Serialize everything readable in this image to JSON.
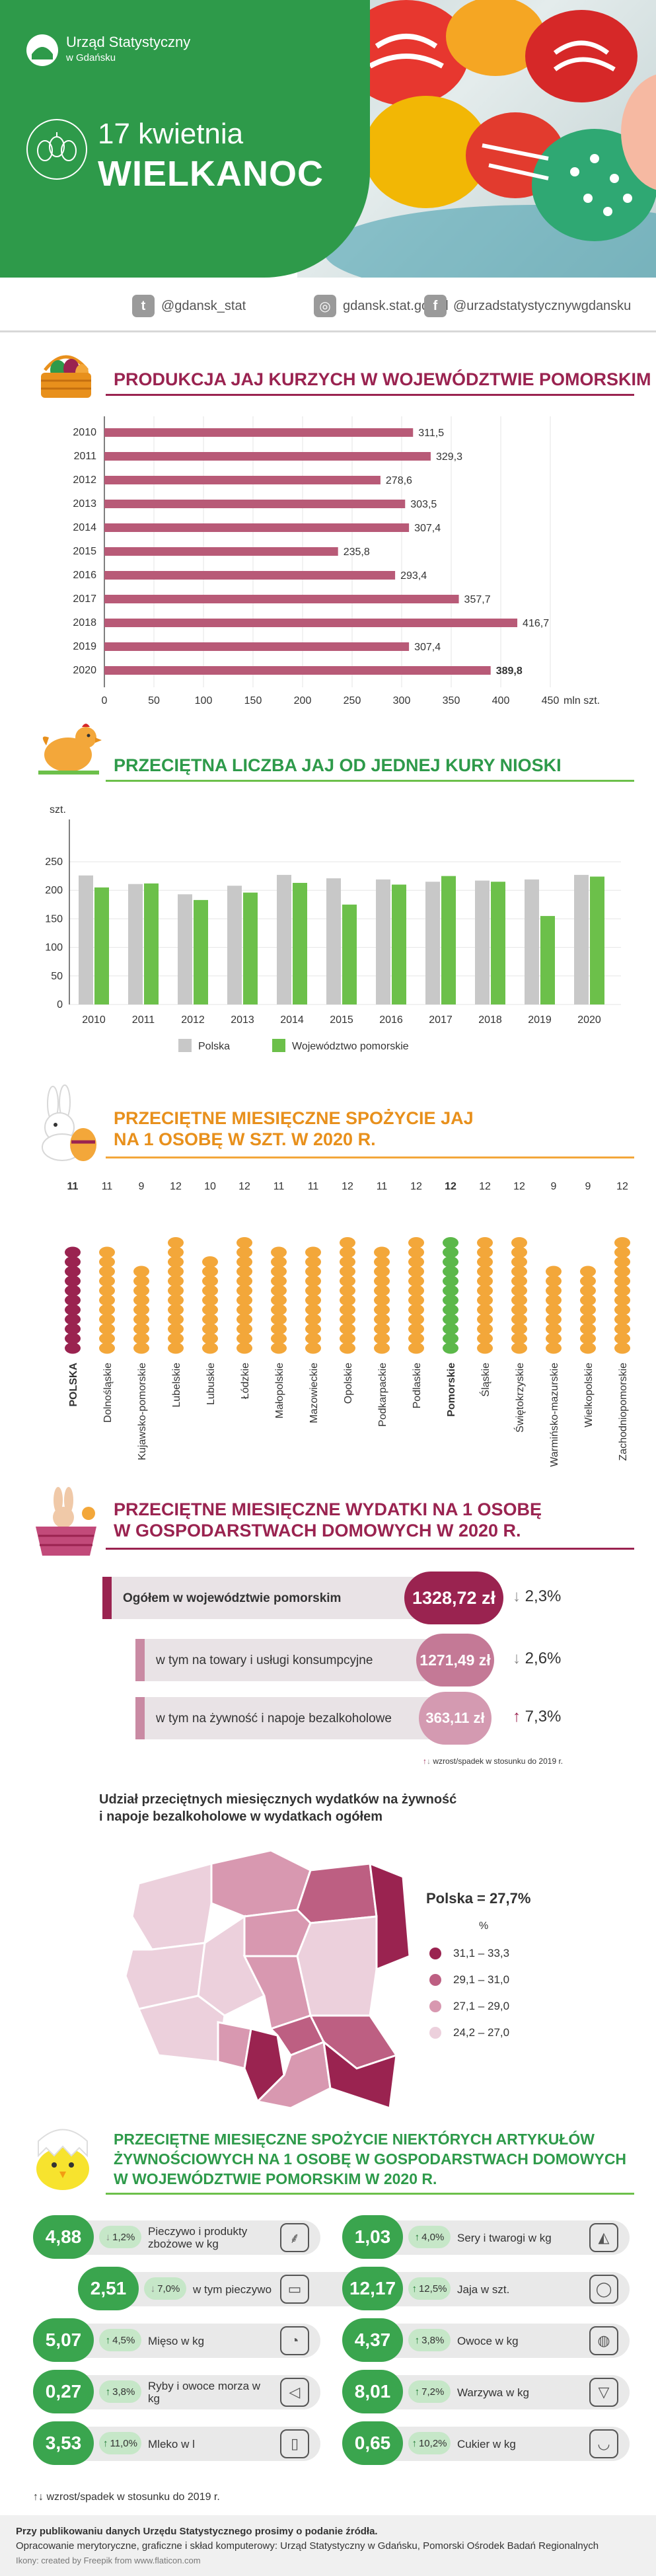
{
  "header": {
    "logo_line1": "Urząd Statystyczny",
    "logo_line2": "w Gdańsku",
    "date": "17 kwietnia",
    "title": "WIELKANOC"
  },
  "social": {
    "twitter": "@gdansk_stat",
    "web": "gdansk.stat.gov.pl",
    "facebook": "@urzadstatystycznywgdansku"
  },
  "section1": {
    "title": "PRODUKCJA JAJ KURZYCH W WOJEWÓDZTWIE POMORSKIM"
  },
  "section2": {
    "title": "PRZECIĘTNA LICZBA JAJ OD JEDNEJ KURY NIOSKI"
  },
  "section3": {
    "title_line1": "PRZECIĘTNE MIESIĘCZNE SPOŻYCIE JAJ",
    "title_line2": "NA 1 OSOBĘ W SZT. W 2020 R."
  },
  "section4": {
    "title_line1": "PRZECIĘTNE MIESIĘCZNE WYDATKI NA 1 OSOBĘ",
    "title_line2": "W GOSPODARSTWACH DOMOWYCH W 2020 R.",
    "rows": [
      {
        "label": "Ogółem w województwie pomorskim",
        "value": "1328,72 zł",
        "change": "2,3%",
        "dir": "down"
      },
      {
        "label": "w tym na towary i usługi konsumpcyjne",
        "value": "1271,49 zł",
        "change": "2,6%",
        "dir": "down"
      },
      {
        "label": "w tym na żywność i napoje bezalkoholowe",
        "value": "363,11 zł",
        "change": "7,3%",
        "dir": "up"
      }
    ],
    "note": "wzrost/spadek w stosunku do 2019 r."
  },
  "map": {
    "title_line1": "Udział przeciętnych miesięcznych wydatków na żywność",
    "title_line2": "i napoje bezalkoholowe w wydatkach ogółem",
    "poland": "Polska = 27,7%",
    "unit": "%",
    "legend": [
      {
        "label": "31,1 – 33,3",
        "color": "#9a2350"
      },
      {
        "label": "29,1 – 31,0",
        "color": "#bd5f82"
      },
      {
        "label": "27,1 – 29,0",
        "color": "#d898b0"
      },
      {
        "label": "24,2 – 27,0",
        "color": "#ecd0dc"
      }
    ]
  },
  "section5": {
    "title_line1": "PRZECIĘTNE MIESIĘCZNE SPOŻYCIE NIEKTÓRYCH ARTYKUŁÓW",
    "title_line2": "ŻYWNOŚCIOWYCH NA 1 OSOBĘ W GOSPODARSTWACH DOMOWYCH",
    "title_line3": "W WOJEWÓDZTWIE POMORSKIM W 2020 R.",
    "note": "wzrost/spadek w stosunku do 2019 r.",
    "left": [
      {
        "value": "4,88",
        "change": "1,2%",
        "dir": "down",
        "label": "Pieczywo i produkty zbożowe w kg",
        "icon": "wheat-icon",
        "glyph": "⸙"
      },
      {
        "value": "2,51",
        "change": "7,0%",
        "dir": "down",
        "label": "w tym pieczywo",
        "icon": "bread-icon",
        "glyph": "▭"
      },
      {
        "value": "5,07",
        "change": "4,5%",
        "dir": "up",
        "label": "Mięso w kg",
        "icon": "meat-icon",
        "glyph": "◔"
      },
      {
        "value": "0,27",
        "change": "3,8%",
        "dir": "up",
        "label": "Ryby i owoce morza w kg",
        "icon": "fish-icon",
        "glyph": "◁"
      },
      {
        "value": "3,53",
        "change": "11,0%",
        "dir": "up",
        "label": "Mleko w l",
        "icon": "milk-icon",
        "glyph": "▯"
      }
    ],
    "right": [
      {
        "value": "1,03",
        "change": "4,0%",
        "dir": "up",
        "label": "Sery i twarogi w kg",
        "icon": "cheese-icon",
        "glyph": "◭"
      },
      {
        "value": "12,17",
        "change": "12,5%",
        "dir": "up",
        "label": "Jaja w szt.",
        "icon": "egg-icon",
        "glyph": "◯"
      },
      {
        "value": "4,37",
        "change": "3,8%",
        "dir": "up",
        "label": "Owoce w kg",
        "icon": "apple-icon",
        "glyph": "◍"
      },
      {
        "value": "8,01",
        "change": "7,2%",
        "dir": "up",
        "label": "Warzywa w kg",
        "icon": "carrot-icon",
        "glyph": "▽"
      },
      {
        "value": "0,65",
        "change": "10,2%",
        "dir": "up",
        "label": "Cukier w kg",
        "icon": "sugar-icon",
        "glyph": "◡"
      }
    ]
  },
  "footer": {
    "line1": "Przy publikowaniu danych Urzędu Statystycznego prosimy o podanie źródła.",
    "line2": "Opracowanie merytoryczne, graficzne i skład komputerowy: Urząd Statystyczny w Gdańsku, Pomorski Ośrodek Badań Regionalnych",
    "line3": "Ikony: created by Freepik from www.flaticon.com"
  },
  "colors": {
    "green": "#2e9a4a",
    "crimson": "#9a2350",
    "bar1": "#b85a77",
    "gray": "#c8c8c8",
    "lightgreen": "#6cc04a",
    "orange": "#f3a73a",
    "poland_dot": "#9a2350",
    "pomorskie_dot": "#5cb84a"
  },
  "chart_data": [
    {
      "type": "bar",
      "orientation": "horizontal",
      "title": "PRODUKCJA JAJ KURZYCH W WOJEWÓDZTWIE POMORSKIM",
      "categories": [
        "2010",
        "2011",
        "2012",
        "2013",
        "2014",
        "2015",
        "2016",
        "2017",
        "2018",
        "2019",
        "2020"
      ],
      "values": [
        311.5,
        329.3,
        278.6,
        303.5,
        307.4,
        235.8,
        293.4,
        357.7,
        416.7,
        307.4,
        389.8
      ],
      "value_labels": [
        "311,5",
        "329,3",
        "278,6",
        "303,5",
        "307,4",
        "235,8",
        "293,4",
        "357,7",
        "416,7",
        "307,4",
        "389,8"
      ],
      "xlim": [
        0,
        450
      ],
      "xticks": [
        "0",
        "50",
        "100",
        "150",
        "200",
        "250",
        "300",
        "350",
        "400",
        "450"
      ],
      "unit": "mln szt."
    },
    {
      "type": "bar",
      "title": "PRZECIĘTNA LICZBA JAJ OD JEDNEJ KURY NIOSKI",
      "categories": [
        "2010",
        "2011",
        "2012",
        "2013",
        "2014",
        "2015",
        "2016",
        "2017",
        "2018",
        "2019",
        "2020"
      ],
      "ylabel": "szt.",
      "ylim": [
        0,
        250
      ],
      "yticks": [
        "0",
        "50",
        "100",
        "150",
        "200",
        "250"
      ],
      "series": [
        {
          "name": "Polska",
          "values": [
            226,
            211,
            193,
            208,
            227,
            221,
            219,
            215,
            217,
            219,
            227
          ]
        },
        {
          "name": "Województwo pomorskie",
          "values": [
            205,
            212,
            183,
            196,
            213,
            175,
            210,
            225,
            215,
            155,
            224
          ]
        }
      ],
      "legend": "bottom"
    },
    {
      "type": "bar",
      "title": "PRZECIĘTNE MIESIĘCZNE SPOŻYCIE JAJ NA 1 OSOBĘ W SZT. W 2020 R.",
      "categories": [
        "POLSKA",
        "Dolnośląskie",
        "Kujawsko-pomorskie",
        "Lubelskie",
        "Lubuskie",
        "Łódzkie",
        "Małopolskie",
        "Mazowieckie",
        "Opolskie",
        "Podkarpackie",
        "Podlaskie",
        "Pomorskie",
        "Śląskie",
        "Świętokrzyskie",
        "Warmińsko-mazurskie",
        "Wielkopolskie",
        "Zachodniopomorskie"
      ],
      "values": [
        11,
        11,
        9,
        12,
        10,
        12,
        11,
        11,
        12,
        11,
        12,
        12,
        12,
        12,
        9,
        9,
        12
      ]
    }
  ]
}
